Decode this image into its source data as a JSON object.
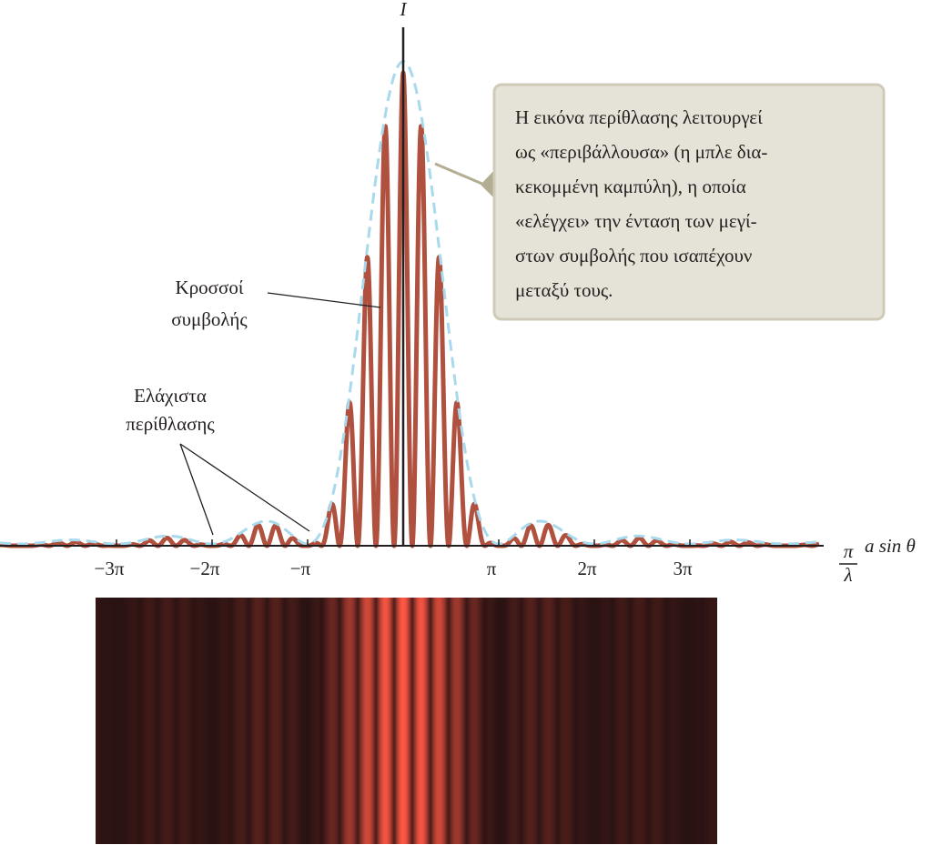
{
  "axis": {
    "y_label": "I",
    "x_label_numerator": "π",
    "x_label_denominator": "λ",
    "x_label_rest": "a sin θ"
  },
  "ticks": [
    "−3π",
    "−2π",
    "−π",
    "π",
    "2π",
    "3π"
  ],
  "fringes_label": [
    "Κροσσοί",
    "συμβολής"
  ],
  "minima_label": [
    "Ελάχιστα",
    "περίθλασης"
  ],
  "callout": [
    "Η εικόνα περίθλασης λειτουργεί",
    "ως «περιβάλλουσα» (η μπλε δια-",
    "κεκομμένη καμπύλη), η οποία",
    "«ελέγχει» την ένταση των μεγί-",
    "στων συμβολής που ισαπέχουν",
    "μεταξύ τους."
  ]
}
